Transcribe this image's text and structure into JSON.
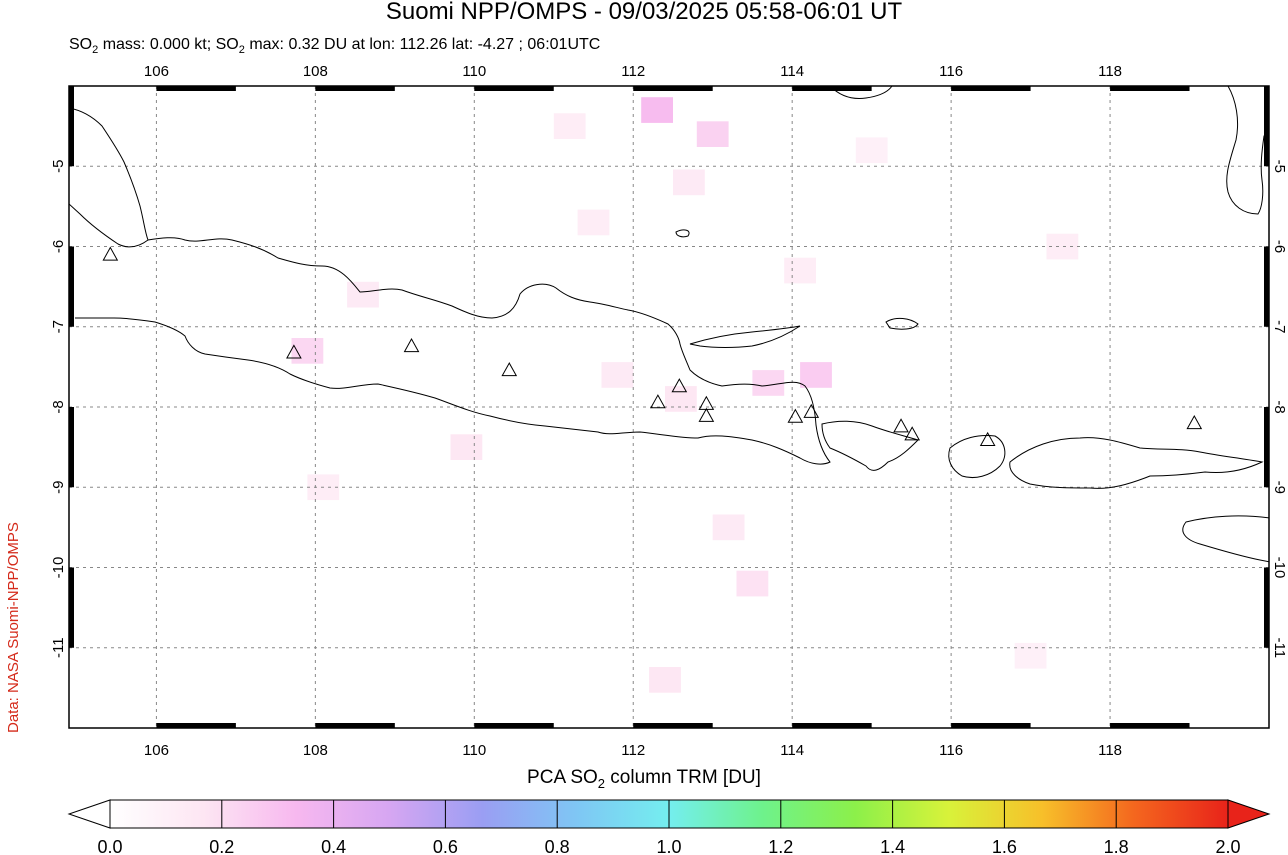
{
  "header": {
    "title": "Suomi NPP/OMPS - 09/03/2025 05:58-06:01 UT",
    "subtitle_pre": "SO",
    "subtitle_sub": "2",
    "subtitle_mid": " mass: 0.000 kt; SO",
    "subtitle_post": " max: 0.32 DU at lon: 112.26 lat: -4.27 ; 06:01UTC"
  },
  "credit": "Data: NASA Suomi-NPP/OMPS",
  "colorbar": {
    "title_pre": "PCA SO",
    "title_sub": "2",
    "title_post": " column TRM [DU]",
    "ticks": [
      "0.0",
      "0.2",
      "0.4",
      "0.6",
      "0.8",
      "1.0",
      "1.2",
      "1.4",
      "1.6",
      "1.8",
      "2.0"
    ],
    "colors": [
      "#ffffff",
      "#fde6f3",
      "#f7b8ef",
      "#d6a6f2",
      "#9a9ef3",
      "#7fc6f4",
      "#74eeef",
      "#6ef28c",
      "#8cf04a",
      "#d8f23a",
      "#f7c02a",
      "#f4661e",
      "#e8231a"
    ]
  },
  "chart_data": {
    "type": "heatmap",
    "title": "Suomi NPP/OMPS - 09/03/2025 05:58-06:01 UT",
    "xlabel": "",
    "ylabel": "",
    "x_range": [
      104.9,
      120.0
    ],
    "y_range": [
      -12.0,
      -4.0
    ],
    "x_ticks": [
      106,
      108,
      110,
      112,
      114,
      116,
      118
    ],
    "y_ticks": [
      -5,
      -6,
      -7,
      -8,
      -9,
      -10,
      -11
    ],
    "grid": true,
    "colorbar_range": [
      0.0,
      2.0
    ],
    "volcanoes": [
      {
        "lon": 105.42,
        "lat": -6.1
      },
      {
        "lon": 107.73,
        "lat": -7.32
      },
      {
        "lon": 109.21,
        "lat": -7.24
      },
      {
        "lon": 110.44,
        "lat": -7.54
      },
      {
        "lon": 112.31,
        "lat": -7.94
      },
      {
        "lon": 112.58,
        "lat": -7.74
      },
      {
        "lon": 112.92,
        "lat": -7.96
      },
      {
        "lon": 112.92,
        "lat": -8.11
      },
      {
        "lon": 114.04,
        "lat": -8.12
      },
      {
        "lon": 114.24,
        "lat": -8.06
      },
      {
        "lon": 115.37,
        "lat": -8.24
      },
      {
        "lon": 115.51,
        "lat": -8.34
      },
      {
        "lon": 116.46,
        "lat": -8.41
      },
      {
        "lon": 119.06,
        "lat": -8.2
      }
    ],
    "so2_cells": [
      {
        "lon": 111.2,
        "lat": -4.5,
        "value": 0.12
      },
      {
        "lon": 112.3,
        "lat": -4.3,
        "value": 0.32
      },
      {
        "lon": 113.0,
        "lat": -4.6,
        "value": 0.24
      },
      {
        "lon": 112.7,
        "lat": -5.2,
        "value": 0.14
      },
      {
        "lon": 111.5,
        "lat": -5.7,
        "value": 0.12
      },
      {
        "lon": 108.6,
        "lat": -6.6,
        "value": 0.14
      },
      {
        "lon": 107.9,
        "lat": -7.3,
        "value": 0.22
      },
      {
        "lon": 109.9,
        "lat": -8.5,
        "value": 0.16
      },
      {
        "lon": 111.8,
        "lat": -7.6,
        "value": 0.14
      },
      {
        "lon": 112.6,
        "lat": -7.9,
        "value": 0.16
      },
      {
        "lon": 113.7,
        "lat": -7.7,
        "value": 0.22
      },
      {
        "lon": 114.3,
        "lat": -7.6,
        "value": 0.26
      },
      {
        "lon": 114.1,
        "lat": -6.3,
        "value": 0.12
      },
      {
        "lon": 115.0,
        "lat": -4.8,
        "value": 0.1
      },
      {
        "lon": 117.4,
        "lat": -6.0,
        "value": 0.12
      },
      {
        "lon": 113.5,
        "lat": -10.2,
        "value": 0.18
      },
      {
        "lon": 113.2,
        "lat": -9.5,
        "value": 0.14
      },
      {
        "lon": 112.4,
        "lat": -11.4,
        "value": 0.16
      },
      {
        "lon": 108.1,
        "lat": -9.0,
        "value": 0.12
      },
      {
        "lon": 117.0,
        "lat": -11.1,
        "value": 0.1
      }
    ]
  }
}
